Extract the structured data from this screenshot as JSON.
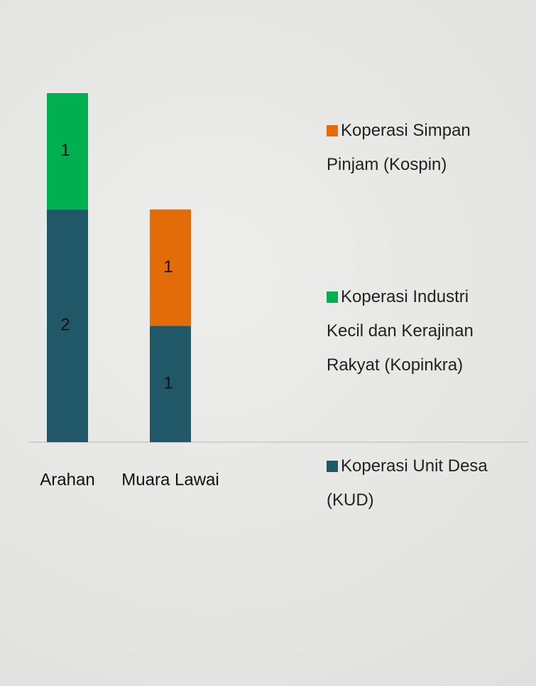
{
  "chart_data": {
    "type": "bar",
    "stacked": true,
    "categories": [
      "Arahan",
      "Muara Lawai"
    ],
    "series": [
      {
        "name": "Koperasi Unit Desa (KUD)",
        "color": "#215868",
        "values": [
          2,
          1
        ]
      },
      {
        "name": "Koperasi Industri Kecil dan Kerajinan Rakyat (Kopinkra)",
        "color": "#00b050",
        "values": [
          1,
          null
        ]
      },
      {
        "name": "Koperasi Simpan Pinjam (Kospin)",
        "color": "#e36c09",
        "values": [
          null,
          1
        ]
      }
    ]
  }
}
